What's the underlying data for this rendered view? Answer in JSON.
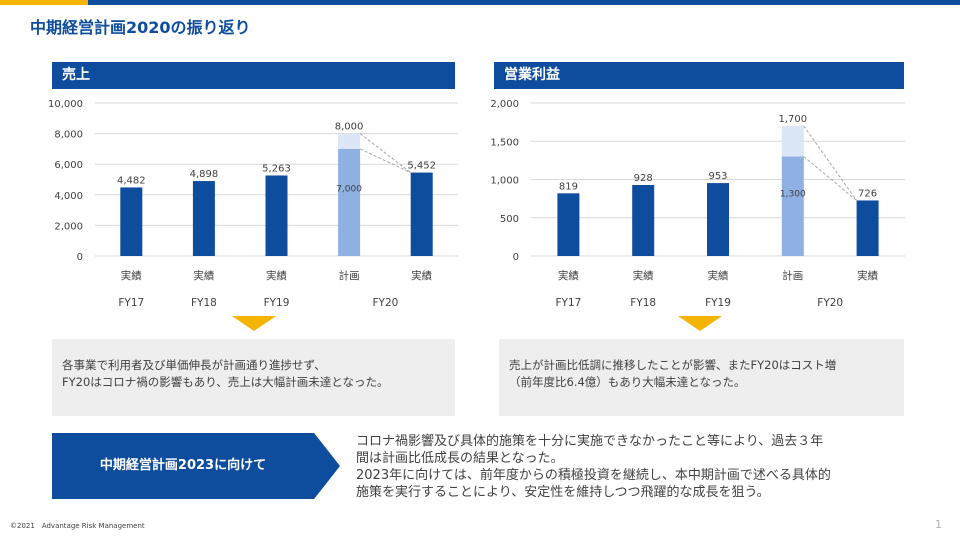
{
  "title": "中期経営計画2020の振り返り",
  "colors": {
    "brand": "#0e4c9e",
    "accent": "#f4b400",
    "bar_actual": "#0e4c9e",
    "bar_plan_base": "#8eb0e2",
    "bar_plan_top": "#dbe6f6"
  },
  "left_header": "売上",
  "right_header": "営業利益",
  "chart_data": [
    {
      "type": "bar",
      "title": "売上",
      "categories": [
        "実績",
        "実績",
        "実績",
        "計画",
        "実績"
      ],
      "fiscal_years": [
        "FY17",
        "FY18",
        "FY19",
        "FY20"
      ],
      "fiscal_year_of_category": [
        "FY17",
        "FY18",
        "FY19",
        "FY20",
        "FY20"
      ],
      "values": [
        4482,
        4898,
        5263,
        8000,
        5452
      ],
      "plan_segments": {
        "category_index": 3,
        "base": 7000,
        "total": 8000
      },
      "value_labels": [
        "4,482",
        "4,898",
        "5,263",
        "8,000",
        "5,452"
      ],
      "base_label": "7,000",
      "ylim": [
        0,
        10000
      ],
      "yticks": [
        0,
        2000,
        4000,
        6000,
        8000,
        10000
      ],
      "ytick_labels": [
        "0",
        "2,000",
        "4,000",
        "6,000",
        "8,000",
        "10,000"
      ],
      "grid": true,
      "legend": "none"
    },
    {
      "type": "bar",
      "title": "営業利益",
      "categories": [
        "実績",
        "実績",
        "実績",
        "計画",
        "実績"
      ],
      "fiscal_years": [
        "FY17",
        "FY18",
        "FY19",
        "FY20"
      ],
      "fiscal_year_of_category": [
        "FY17",
        "FY18",
        "FY19",
        "FY20",
        "FY20"
      ],
      "values": [
        819,
        928,
        953,
        1700,
        726
      ],
      "plan_segments": {
        "category_index": 3,
        "base": 1300,
        "total": 1700
      },
      "value_labels": [
        "819",
        "928",
        "953",
        "1,700",
        "726"
      ],
      "base_label": "1,300",
      "ylim": [
        0,
        2000
      ],
      "yticks": [
        0,
        500,
        1000,
        1500,
        2000
      ],
      "ytick_labels": [
        "0",
        "500",
        "1,000",
        "1,500",
        "2,000"
      ],
      "grid": true,
      "legend": "none"
    }
  ],
  "comments": {
    "left": [
      "各事業で利用者及び単価伸長が計画通り進捗せず、",
      "FY20はコロナ禍の影響もあり、売上は大幅計画未達となった。"
    ],
    "right": [
      "売上が計画比低調に推移したことが影響、またFY20はコスト増",
      "（前年度比6.4億）もあり大幅未達となった。"
    ]
  },
  "plan_label": "中期経営計画2023に向けて",
  "plan_text": [
    "コロナ禍影響及び具体的施策を十分に実施できなかったこと等により、過去３年",
    "間は計画比低成長の結果となった。",
    "2023年に向けては、前年度からの積極投資を継続し、本中期計画で述べる具体的",
    "施策を実行することにより、安定性を維持しつつ飛躍的な成長を狙う。"
  ],
  "footer": "©2021　Advantage Risk Management",
  "page_number": "1"
}
